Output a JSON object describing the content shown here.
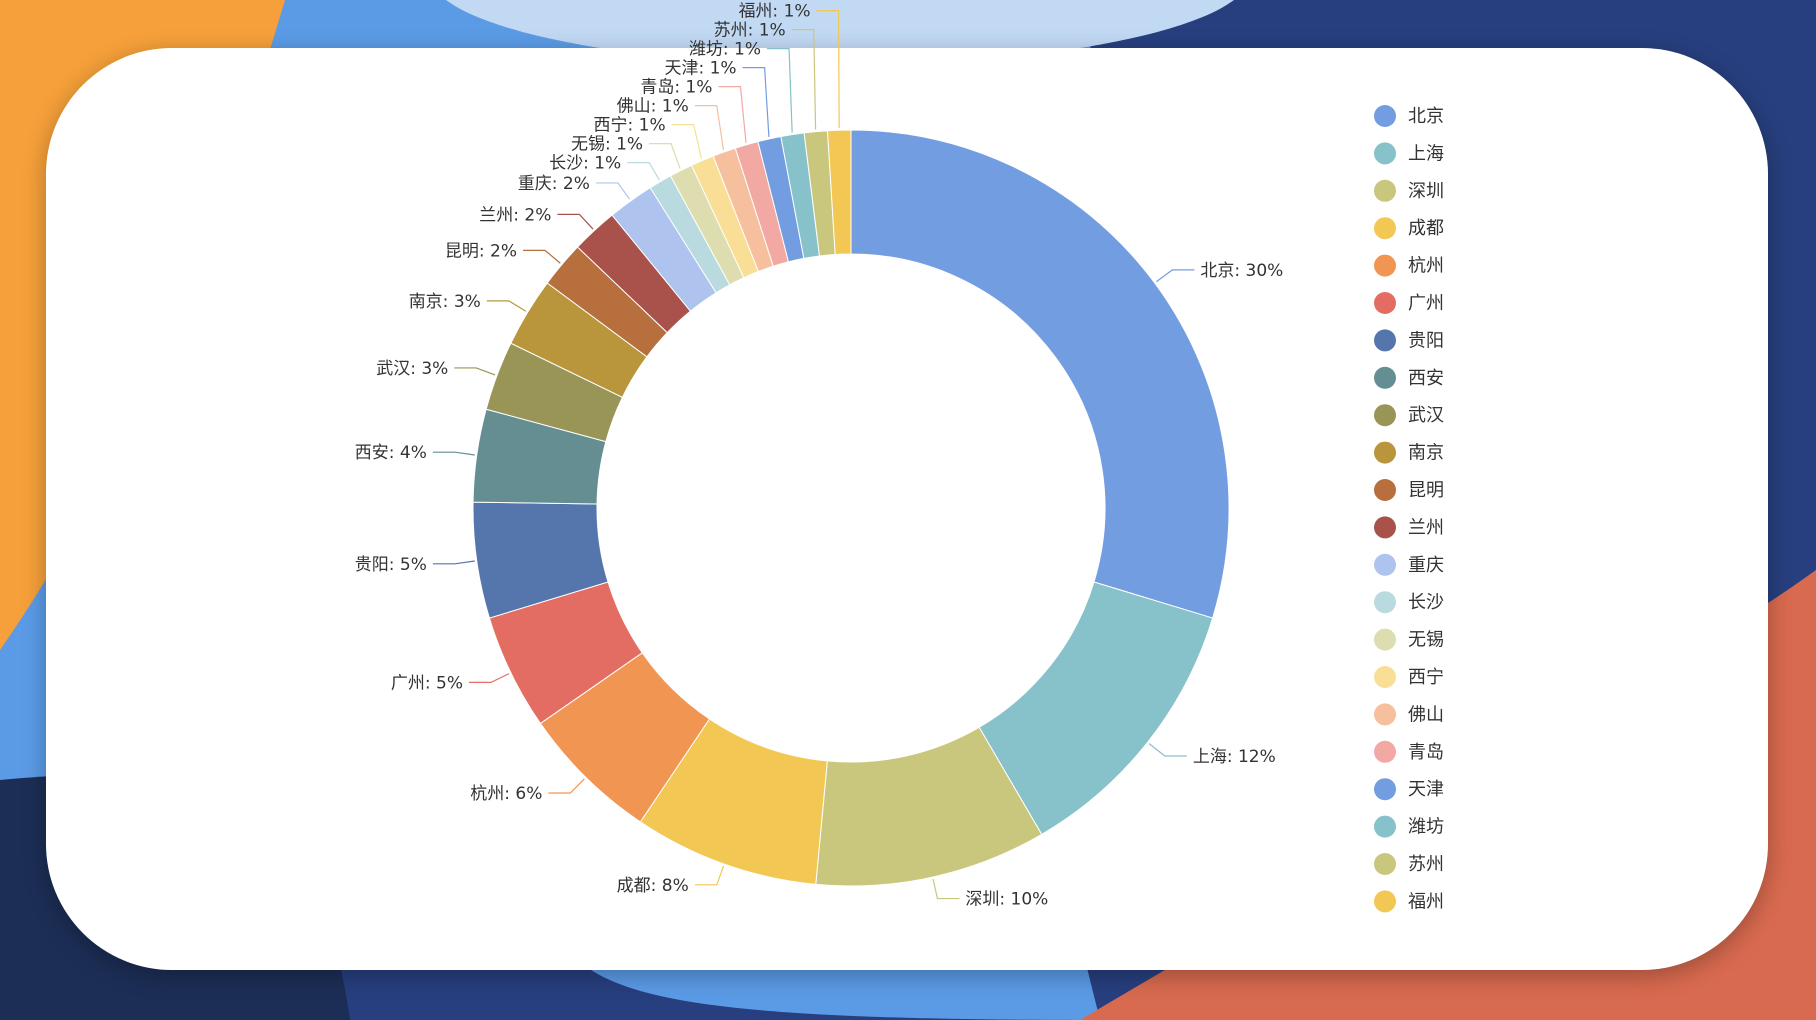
{
  "colors": {
    "bg_orange": "#F5A03A",
    "bg_blue_light": "#5B9BE6",
    "bg_blue_pale": "#C2D9F4",
    "bg_navy": "#273F7E",
    "bg_navy_dark": "#1C2E56",
    "bg_coral": "#D86A4F",
    "card": "#FFFFFF"
  },
  "chart_data": {
    "type": "pie",
    "variant": "donut",
    "legend_position": "right",
    "label_format": "{name}: {percent}%",
    "slices": [
      {
        "name": "北京",
        "percent": 30,
        "color": "#739DE1"
      },
      {
        "name": "上海",
        "percent": 12,
        "color": "#87C1C9"
      },
      {
        "name": "深圳",
        "percent": 10,
        "color": "#C9C77D"
      },
      {
        "name": "成都",
        "percent": 8,
        "color": "#F3C753"
      },
      {
        "name": "杭州",
        "percent": 6,
        "color": "#F19552"
      },
      {
        "name": "广州",
        "percent": 5,
        "color": "#E46D63"
      },
      {
        "name": "贵阳",
        "percent": 5,
        "color": "#5575AD"
      },
      {
        "name": "西安",
        "percent": 4,
        "color": "#648E92"
      },
      {
        "name": "武汉",
        "percent": 3,
        "color": "#999556"
      },
      {
        "name": "南京",
        "percent": 3,
        "color": "#B9963C"
      },
      {
        "name": "昆明",
        "percent": 2,
        "color": "#B66F3D"
      },
      {
        "name": "兰州",
        "percent": 2,
        "color": "#A9514B"
      },
      {
        "name": "重庆",
        "percent": 2,
        "color": "#AEC4EE"
      },
      {
        "name": "长沙",
        "percent": 1,
        "color": "#B9DADF"
      },
      {
        "name": "无锡",
        "percent": 1,
        "color": "#DDDDB0"
      },
      {
        "name": "西宁",
        "percent": 1,
        "color": "#F8DF95"
      },
      {
        "name": "佛山",
        "percent": 1,
        "color": "#F6C09E"
      },
      {
        "name": "青岛",
        "percent": 1,
        "color": "#F2A9A4"
      },
      {
        "name": "天津",
        "percent": 1,
        "color": "#739DE1"
      },
      {
        "name": "潍坊",
        "percent": 1,
        "color": "#87C1C9"
      },
      {
        "name": "苏州",
        "percent": 1,
        "color": "#C9C77D"
      },
      {
        "name": "福州",
        "percent": 1,
        "color": "#F3C753"
      }
    ]
  }
}
